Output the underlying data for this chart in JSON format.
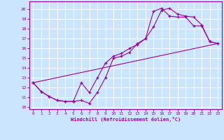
{
  "xlabel": "Windchill (Refroidissement éolien,°C)",
  "xlim": [
    -0.5,
    23.5
  ],
  "ylim": [
    9.8,
    20.8
  ],
  "yticks": [
    10,
    11,
    12,
    13,
    14,
    15,
    16,
    17,
    18,
    19,
    20
  ],
  "xticks": [
    0,
    1,
    2,
    3,
    4,
    5,
    6,
    7,
    8,
    9,
    10,
    11,
    12,
    13,
    14,
    15,
    16,
    17,
    18,
    19,
    20,
    21,
    22,
    23
  ],
  "bg_color": "#cce5ff",
  "line_color": "#990099",
  "line1_x": [
    0,
    1,
    2,
    3,
    4,
    5,
    6,
    7,
    8,
    9,
    10,
    11,
    12,
    13,
    14,
    15,
    16,
    17,
    18,
    19,
    20,
    21,
    22,
    23
  ],
  "line1_y": [
    12.5,
    11.6,
    11.1,
    10.7,
    10.6,
    10.6,
    10.7,
    10.4,
    11.5,
    13.0,
    15.0,
    15.2,
    15.6,
    16.5,
    17.0,
    18.2,
    19.9,
    20.1,
    19.5,
    19.3,
    19.2,
    18.4,
    16.7,
    16.5
  ],
  "line2_x": [
    0,
    1,
    2,
    3,
    4,
    5,
    6,
    7,
    8,
    9,
    10,
    11,
    12,
    13,
    14,
    15,
    16,
    17,
    18,
    19,
    20,
    21,
    22,
    23
  ],
  "line2_y": [
    12.5,
    11.6,
    11.1,
    10.7,
    10.6,
    10.6,
    12.5,
    11.5,
    13.0,
    14.5,
    15.2,
    15.5,
    16.0,
    16.4,
    17.0,
    19.8,
    20.1,
    19.3,
    19.2,
    19.2,
    18.3,
    18.3,
    16.7,
    16.5
  ],
  "line3_x": [
    0,
    23
  ],
  "line3_y": [
    12.5,
    16.5
  ]
}
